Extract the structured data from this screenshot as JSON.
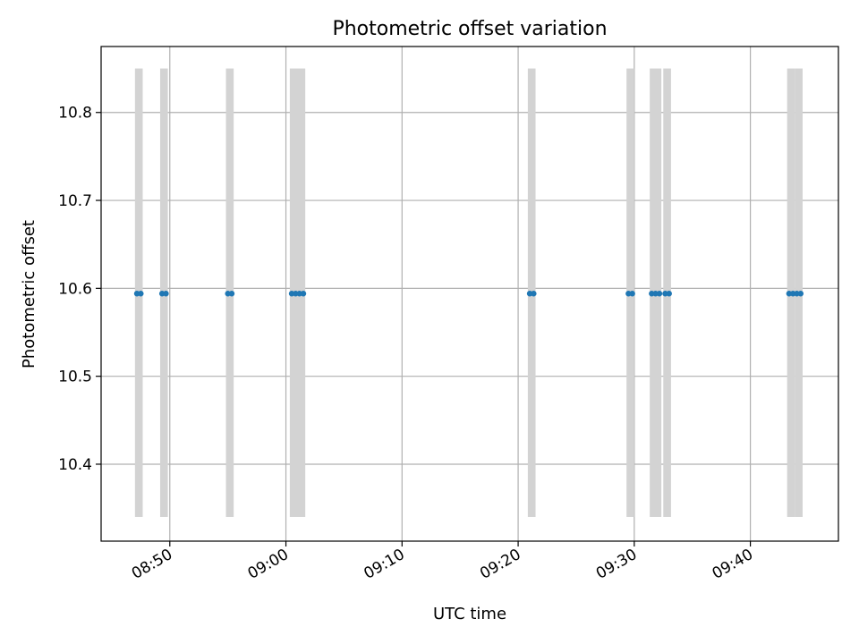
{
  "chart_data": {
    "type": "scatter",
    "title": "Photometric offset variation",
    "xlabel": "UTC time",
    "ylabel": "Photometric offset",
    "x_axis": {
      "kind": "time",
      "range": [
        "08:44:05",
        "09:47:35"
      ],
      "ticks": [
        "08:50",
        "09:00",
        "09:10",
        "09:20",
        "09:30",
        "09:40"
      ]
    },
    "y_axis": {
      "range": [
        10.3125,
        10.875
      ],
      "ticks": [
        "10.4",
        "10.5",
        "10.6",
        "10.7",
        "10.8"
      ]
    },
    "grid": true,
    "legend": "none",
    "colors": {
      "points": "#1f77b4",
      "exposures": "#d3d3d3",
      "grid": "#b0b0b0"
    },
    "exposures": [
      [
        "08:47:00",
        "08:47:40"
      ],
      [
        "08:49:10",
        "08:49:50"
      ],
      [
        "08:54:50",
        "08:55:30"
      ],
      [
        "09:00:20",
        "09:01:40"
      ],
      [
        "09:20:50",
        "09:21:30"
      ],
      [
        "09:29:20",
        "09:30:00"
      ],
      [
        "09:31:20",
        "09:32:20"
      ],
      [
        "09:32:30",
        "09:33:10"
      ],
      [
        "09:43:10",
        "09:43:50"
      ],
      [
        "09:43:50",
        "09:44:30"
      ]
    ],
    "series": [
      {
        "x": [
          "08:47:10",
          "08:47:30",
          "08:49:20",
          "08:49:40",
          "08:55:00",
          "08:55:20",
          "09:00:30",
          "09:00:50",
          "09:01:10",
          "09:01:30",
          "09:21:00",
          "09:21:20",
          "09:29:30",
          "09:29:50",
          "09:31:30",
          "09:31:50",
          "09:32:10",
          "09:32:40",
          "09:33:00",
          "09:43:20",
          "09:43:40",
          "09:44:00",
          "09:44:20"
        ],
        "y": [
          10.594,
          10.594,
          10.594,
          10.594,
          10.594,
          10.594,
          10.594,
          10.594,
          10.594,
          10.594,
          10.594,
          10.594,
          10.594,
          10.594,
          10.594,
          10.594,
          10.594,
          10.594,
          10.594,
          10.594,
          10.594,
          10.594,
          10.594
        ]
      }
    ],
    "exposure_y_range": [
      10.34,
      10.85
    ]
  }
}
